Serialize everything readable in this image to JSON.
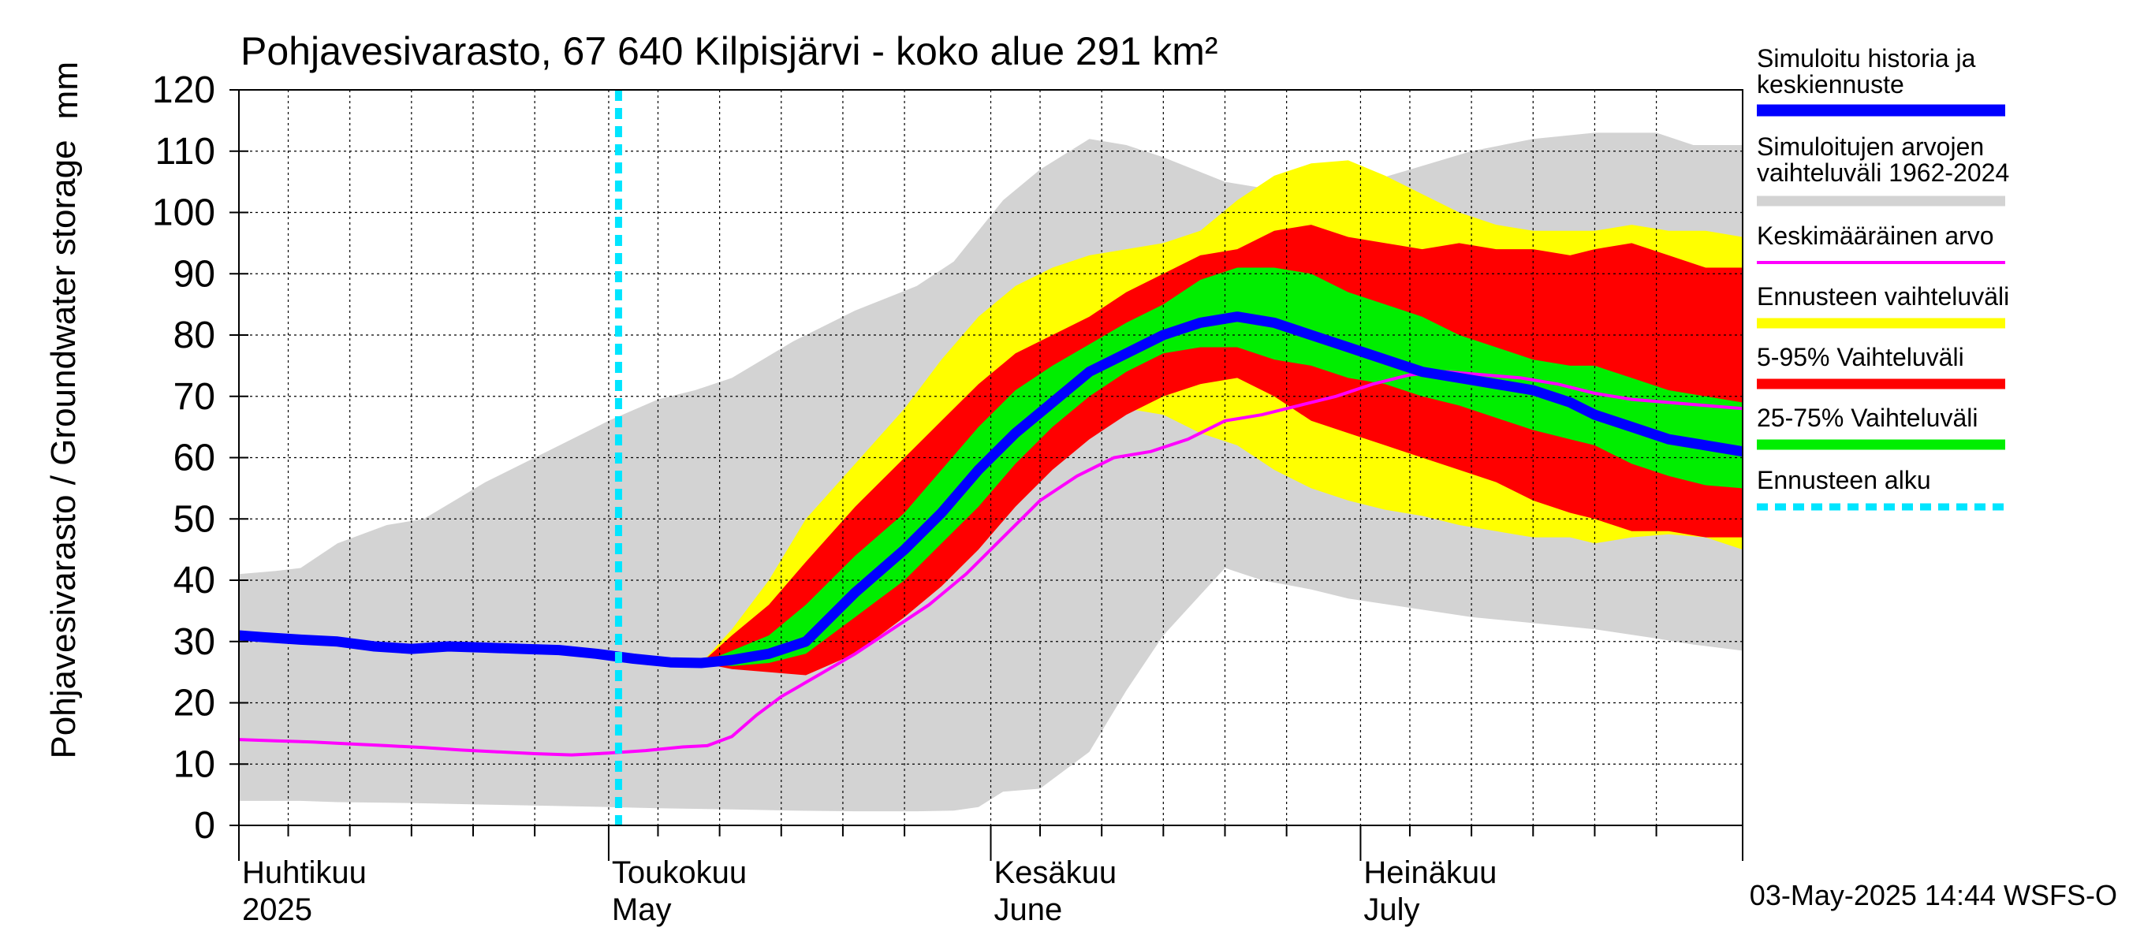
{
  "chart_data": {
    "type": "area",
    "title": "Pohjavesivarasto, 67 640 Kilpisjärvi - koko alue 291 km²",
    "ylabel": "Pohjavesivarasto / Groundwater storage",
    "yunit": "mm",
    "ylim": [
      0,
      120
    ],
    "yticks": [
      0,
      10,
      20,
      30,
      40,
      50,
      60,
      70,
      80,
      90,
      100,
      110,
      120
    ],
    "xlim": [
      0,
      122
    ],
    "x_note": "days since 1 April 2025",
    "grid": true,
    "month_ticks": [
      {
        "day": 0,
        "fi": "Huhtikuu",
        "en": "2025"
      },
      {
        "day": 30,
        "fi": "Toukokuu",
        "en": "May"
      },
      {
        "day": 61,
        "fi": "Kesäkuu",
        "en": "June"
      },
      {
        "day": 91,
        "fi": "Heinäkuu",
        "en": "July"
      }
    ],
    "forecast_start_day": 30.8,
    "legend": [
      {
        "key": "median",
        "label": "Simuloitu historia ja keskiennuste",
        "color": "#0000ff",
        "style": "thick"
      },
      {
        "key": "hist_range",
        "label": "Simuloitujen arvojen vaihteluväli 1962-2024",
        "color": "#d3d3d3",
        "style": "band"
      },
      {
        "key": "mean",
        "label": "Keskimääräinen arvo",
        "color": "#ff00ff",
        "style": "line"
      },
      {
        "key": "full_range",
        "label": "Ennusteen vaihteluväli",
        "color": "#ffff00",
        "style": "band"
      },
      {
        "key": "p5_95",
        "label": "5-95% Vaihteluväli",
        "color": "#ff0000",
        "style": "band"
      },
      {
        "key": "p25_75",
        "label": "25-75% Vaihteluväli",
        "color": "#00ee00",
        "style": "band"
      },
      {
        "key": "fc_start",
        "label": "Ennusteen alku",
        "color": "#00e5ff",
        "style": "dashed"
      }
    ],
    "series": {
      "hist_range": {
        "x": [
          0,
          3,
          5,
          8,
          12,
          15,
          20,
          25,
          30,
          34,
          37,
          40,
          45,
          50,
          55,
          58,
          60,
          62,
          65,
          69,
          72,
          75,
          80,
          83,
          87,
          90,
          95,
          100,
          105,
          110,
          115,
          118,
          122
        ],
        "upper": [
          41,
          41.5,
          42,
          46,
          49,
          50,
          56,
          61,
          66,
          69.5,
          71,
          73,
          79,
          84,
          88,
          92,
          97,
          102,
          107,
          112,
          111,
          109,
          105,
          104,
          103,
          104,
          107,
          110,
          112,
          113,
          113,
          111,
          111
        ],
        "lower": [
          4,
          4,
          4,
          3.8,
          3.7,
          3.6,
          3.4,
          3.2,
          3.0,
          2.8,
          2.7,
          2.6,
          2.4,
          2.3,
          2.3,
          2.4,
          3,
          5.5,
          6,
          12,
          22,
          31,
          42,
          40,
          38.5,
          37,
          35.5,
          34,
          33,
          32,
          30.5,
          29.5,
          28.5
        ]
      },
      "full_range": {
        "x": [
          37.5,
          40,
          43,
          46,
          50,
          54,
          57,
          60,
          63,
          66,
          69,
          72,
          75,
          78,
          81,
          84,
          87,
          90,
          93,
          96,
          99,
          102,
          105,
          108,
          110,
          113,
          116,
          119,
          122
        ],
        "upper": [
          26.5,
          32,
          40,
          50,
          59,
          68,
          76,
          83,
          88,
          91,
          93,
          94,
          95,
          97,
          102,
          106,
          108,
          108.5,
          106,
          103,
          100,
          98,
          97,
          97,
          97,
          98,
          97,
          97,
          96
        ],
        "lower": [
          26.5,
          26,
          25.5,
          25,
          28,
          34,
          40,
          48,
          58,
          65,
          68,
          68,
          67,
          64,
          62,
          58,
          55,
          53,
          51.5,
          50.5,
          49,
          48,
          47,
          47,
          46,
          47,
          47.5,
          47,
          45
        ]
      },
      "p5_95": {
        "x": [
          37.5,
          40,
          43,
          46,
          50,
          54,
          57,
          60,
          63,
          66,
          69,
          72,
          75,
          78,
          81,
          84,
          87,
          90,
          93,
          96,
          99,
          102,
          105,
          108,
          110,
          113,
          116,
          119,
          122
        ],
        "upper": [
          26.5,
          31,
          36,
          43,
          52,
          60,
          66,
          72,
          77,
          80,
          83,
          87,
          90,
          93,
          94,
          97,
          98,
          96,
          95,
          94,
          95,
          94,
          94,
          93,
          94,
          95,
          93,
          91,
          91
        ],
        "lower": [
          26.5,
          25.5,
          25,
          24.5,
          28,
          34,
          39,
          45,
          52,
          58,
          63,
          67,
          70,
          72,
          73,
          70,
          66,
          64,
          62,
          60,
          58,
          56,
          53,
          51,
          50,
          48,
          48,
          47,
          47
        ]
      },
      "p25_75": {
        "x": [
          37.5,
          40,
          43,
          46,
          50,
          54,
          57,
          60,
          63,
          66,
          69,
          72,
          75,
          78,
          81,
          84,
          87,
          90,
          93,
          96,
          99,
          102,
          105,
          108,
          110,
          113,
          116,
          119,
          122
        ],
        "upper": [
          26.5,
          28.5,
          31,
          36,
          44,
          51,
          58,
          65,
          71,
          75,
          78.5,
          82,
          85,
          89,
          91,
          91,
          90,
          87,
          85,
          83,
          80,
          78,
          76,
          75,
          75,
          73,
          71,
          70,
          69
        ],
        "lower": [
          26.5,
          26,
          26.5,
          28,
          34,
          40,
          46,
          52,
          59,
          65,
          70,
          74,
          77,
          78,
          78,
          76,
          75,
          73,
          72,
          70,
          68.5,
          66.5,
          64.5,
          63,
          62,
          59,
          57,
          55.5,
          55
        ]
      },
      "median": {
        "x": [
          0,
          2,
          5,
          8,
          11,
          14,
          17,
          20,
          23,
          26,
          29,
          32,
          35,
          37.5,
          40,
          43,
          46,
          50,
          54,
          57,
          60,
          63,
          66,
          69,
          72,
          75,
          78,
          81,
          84,
          87,
          90,
          93,
          96,
          99,
          102,
          105,
          108,
          110,
          113,
          116,
          119,
          122
        ],
        "values": [
          31,
          30.7,
          30.3,
          30,
          29.2,
          28.8,
          29.2,
          29,
          28.8,
          28.6,
          28,
          27.2,
          26.6,
          26.5,
          27,
          28,
          30,
          38,
          45,
          51,
          58,
          64,
          69,
          74,
          77,
          80,
          82,
          83,
          82,
          80,
          78,
          76,
          74,
          73,
          72,
          71,
          69,
          67,
          65,
          63,
          62,
          61
        ]
      },
      "mean": {
        "x": [
          0,
          3,
          6,
          9,
          12,
          15,
          18,
          21,
          24,
          27,
          30,
          33,
          36,
          38,
          40,
          42,
          44,
          47,
          50,
          53,
          56,
          59,
          62,
          65,
          68,
          71,
          74,
          77,
          80,
          83,
          86,
          89,
          92,
          95,
          98,
          101,
          104,
          107,
          110,
          113,
          116,
          119,
          122
        ],
        "values": [
          14,
          13.8,
          13.6,
          13.3,
          13,
          12.7,
          12.3,
          12,
          11.7,
          11.5,
          11.8,
          12.2,
          12.8,
          13,
          14.5,
          18,
          21,
          24.5,
          28,
          32,
          36,
          41,
          47,
          53,
          57,
          60,
          61,
          63,
          66,
          67,
          68.5,
          70,
          72,
          73.5,
          74,
          73.5,
          73,
          72,
          70.5,
          69.5,
          69,
          68.5,
          68
        ]
      }
    },
    "footer": "03-May-2025 14:44 WSFS-O"
  }
}
